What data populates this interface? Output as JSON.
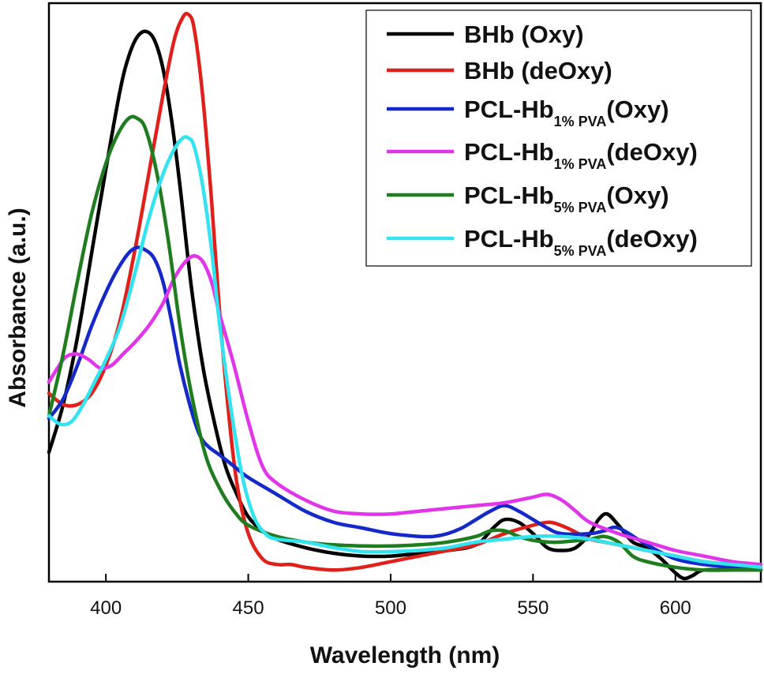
{
  "chart_data": {
    "type": "line",
    "title": "",
    "xlabel": "Wavelength (nm)",
    "ylabel": "Absorbance (a.u.)",
    "xlim": [
      380,
      630
    ],
    "ylim": [
      0,
      1
    ],
    "y_ticks_shown": false,
    "x_ticks": [
      400,
      450,
      500,
      550,
      600
    ],
    "x_tick_labels": [
      "400",
      "450",
      "500",
      "550",
      "600"
    ],
    "legend_position": "top-right",
    "series": [
      {
        "name": "BHb (Oxy)",
        "legend_main": "BHb (Oxy)",
        "legend_sub": "",
        "legend_tail": "",
        "color": "#000000",
        "x": [
          380,
          385,
          390,
          395,
          400,
          405,
          408,
          411,
          414,
          417,
          420,
          423,
          426,
          430,
          434,
          438,
          442,
          446,
          450,
          455,
          460,
          470,
          480,
          490,
          500,
          510,
          520,
          530,
          536,
          540,
          545,
          550,
          555,
          560,
          565,
          570,
          573,
          576,
          580,
          585,
          590,
          595,
          600,
          603,
          606,
          610,
          620,
          630
        ],
        "y": [
          0.225,
          0.31,
          0.43,
          0.58,
          0.73,
          0.87,
          0.93,
          0.965,
          0.975,
          0.96,
          0.91,
          0.82,
          0.7,
          0.52,
          0.38,
          0.28,
          0.2,
          0.15,
          0.11,
          0.085,
          0.07,
          0.055,
          0.045,
          0.04,
          0.04,
          0.045,
          0.05,
          0.06,
          0.09,
          0.105,
          0.1,
          0.08,
          0.055,
          0.05,
          0.055,
          0.08,
          0.105,
          0.115,
          0.095,
          0.065,
          0.055,
          0.035,
          0.01,
          0.0,
          0.005,
          0.015,
          0.015,
          0.015
        ]
      },
      {
        "name": "BHb (deOxy)",
        "legend_main": "BHb (deOxy)",
        "legend_sub": "",
        "legend_tail": "",
        "color": "#e0201a",
        "x": [
          380,
          385,
          390,
          395,
          400,
          405,
          410,
          415,
          420,
          424,
          427,
          429,
          431,
          434,
          437,
          440,
          443,
          446,
          450,
          455,
          460,
          465,
          470,
          480,
          490,
          500,
          510,
          520,
          530,
          540,
          550,
          555,
          558,
          562,
          566,
          570,
          575,
          580,
          590,
          600,
          610,
          620,
          630
        ],
        "y": [
          0.33,
          0.31,
          0.31,
          0.33,
          0.38,
          0.46,
          0.58,
          0.72,
          0.86,
          0.96,
          1.0,
          1.005,
          0.98,
          0.86,
          0.68,
          0.47,
          0.3,
          0.17,
          0.08,
          0.035,
          0.025,
          0.025,
          0.02,
          0.015,
          0.02,
          0.03,
          0.04,
          0.05,
          0.06,
          0.08,
          0.095,
          0.1,
          0.098,
          0.09,
          0.08,
          0.07,
          0.065,
          0.06,
          0.05,
          0.04,
          0.03,
          0.025,
          0.02
        ]
      },
      {
        "name": "PCL-Hb1% PVA(Oxy)",
        "legend_main": "PCL-Hb",
        "legend_sub": "1% PVA",
        "legend_tail": "(Oxy)",
        "color": "#1528c8",
        "x": [
          380,
          385,
          390,
          395,
          400,
          404,
          408,
          411,
          414,
          417,
          420,
          423,
          426,
          430,
          433,
          436,
          440,
          445,
          450,
          460,
          470,
          480,
          490,
          500,
          510,
          515,
          520,
          525,
          530,
          535,
          540,
          545,
          550,
          555,
          560,
          570,
          575,
          580,
          590,
          600,
          610,
          620,
          630
        ],
        "y": [
          0.285,
          0.32,
          0.38,
          0.45,
          0.51,
          0.55,
          0.58,
          0.59,
          0.585,
          0.57,
          0.53,
          0.46,
          0.38,
          0.3,
          0.255,
          0.235,
          0.22,
          0.2,
          0.18,
          0.15,
          0.12,
          0.1,
          0.09,
          0.08,
          0.075,
          0.075,
          0.08,
          0.09,
          0.105,
          0.12,
          0.13,
          0.12,
          0.105,
          0.09,
          0.08,
          0.08,
          0.085,
          0.09,
          0.06,
          0.035,
          0.025,
          0.02,
          0.015
        ]
      },
      {
        "name": "PCL-Hb1% PVA(deOxy)",
        "legend_main": "PCL-Hb",
        "legend_sub": "1% PVA",
        "legend_tail": "(deOxy)",
        "color": "#e035e8",
        "x": [
          380,
          383,
          386,
          390,
          394,
          398,
          402,
          406,
          410,
          415,
          420,
          424,
          428,
          431,
          434,
          437,
          440,
          445,
          450,
          455,
          460,
          470,
          480,
          490,
          500,
          510,
          520,
          530,
          540,
          550,
          555,
          560,
          565,
          570,
          580,
          590,
          600,
          610,
          620,
          630
        ],
        "y": [
          0.35,
          0.375,
          0.395,
          0.4,
          0.39,
          0.375,
          0.38,
          0.4,
          0.42,
          0.45,
          0.49,
          0.535,
          0.565,
          0.575,
          0.565,
          0.53,
          0.47,
          0.38,
          0.28,
          0.2,
          0.17,
          0.14,
          0.12,
          0.115,
          0.115,
          0.12,
          0.125,
          0.13,
          0.135,
          0.145,
          0.15,
          0.14,
          0.12,
          0.1,
          0.08,
          0.065,
          0.05,
          0.04,
          0.03,
          0.025
        ]
      },
      {
        "name": "PCL-Hb5% PVA(Oxy)",
        "legend_main": "PCL-Hb",
        "legend_sub": "5% PVA",
        "legend_tail": "(Oxy)",
        "color": "#1f7d1f",
        "x": [
          380,
          385,
          390,
          395,
          400,
          404,
          408,
          411,
          414,
          418,
          422,
          426,
          430,
          435,
          440,
          445,
          450,
          460,
          470,
          480,
          490,
          500,
          510,
          520,
          530,
          535,
          540,
          545,
          550,
          555,
          560,
          570,
          575,
          580,
          585,
          590,
          600,
          610,
          620,
          630
        ],
        "y": [
          0.29,
          0.4,
          0.53,
          0.65,
          0.74,
          0.79,
          0.82,
          0.82,
          0.8,
          0.72,
          0.6,
          0.45,
          0.33,
          0.22,
          0.16,
          0.12,
          0.095,
          0.075,
          0.065,
          0.06,
          0.058,
          0.058,
          0.06,
          0.065,
          0.075,
          0.085,
          0.085,
          0.075,
          0.068,
          0.065,
          0.065,
          0.07,
          0.075,
          0.065,
          0.04,
          0.03,
          0.02,
          0.015,
          0.015,
          0.015
        ]
      },
      {
        "name": "PCL-Hb5% PVA(deOxy)",
        "legend_main": "PCL-Hb",
        "legend_sub": "5% PVA",
        "legend_tail": "(deOxy)",
        "color": "#33e3f0",
        "x": [
          380,
          384,
          388,
          392,
          396,
          400,
          405,
          410,
          415,
          420,
          424,
          427,
          429,
          431,
          434,
          437,
          440,
          444,
          448,
          452,
          456,
          460,
          470,
          480,
          490,
          500,
          510,
          520,
          530,
          540,
          550,
          560,
          570,
          580,
          590,
          600,
          610,
          620,
          630
        ],
        "y": [
          0.29,
          0.275,
          0.28,
          0.31,
          0.35,
          0.39,
          0.45,
          0.54,
          0.64,
          0.72,
          0.765,
          0.785,
          0.785,
          0.77,
          0.7,
          0.59,
          0.45,
          0.3,
          0.18,
          0.11,
          0.08,
          0.07,
          0.065,
          0.055,
          0.048,
          0.048,
          0.05,
          0.055,
          0.065,
          0.07,
          0.075,
          0.075,
          0.07,
          0.06,
          0.05,
          0.04,
          0.03,
          0.025,
          0.02
        ]
      }
    ]
  }
}
